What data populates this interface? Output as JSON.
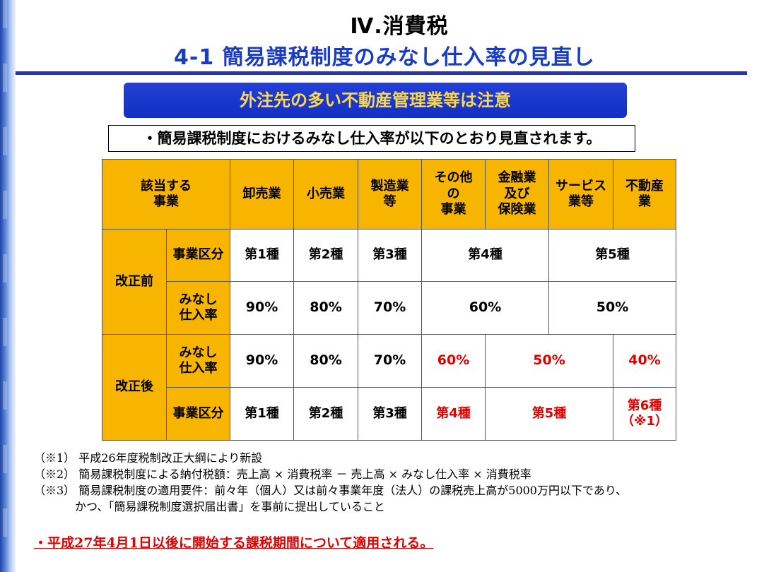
{
  "header": {
    "title": "Ⅳ.消費税",
    "subtitle": "4-1  簡易課税制度のみなし仕入率の見直し"
  },
  "banner": "外注先の多い不動産管理業等は注意",
  "intro": "・簡易課税制度におけるみなし仕入率が以下のとおり見直されます。",
  "table": {
    "corner_label": "該当する\n事業",
    "categories": [
      "卸売業",
      "小売業",
      "製造業\n等",
      "その他\nの\n事業",
      "金融業\n及び\n保険業",
      "サービス\n業等",
      "不動産\n業"
    ],
    "before": {
      "label": "改正前",
      "class_label": "事業区分",
      "rate_label": "みなし\n仕入率",
      "classes": [
        "第1種",
        "第2種",
        "第3種",
        "第4種",
        "第5種"
      ],
      "rates": [
        "90%",
        "80%",
        "70%",
        "60%",
        "50%"
      ]
    },
    "after": {
      "label": "改正後",
      "rate_label": "みなし\n仕入率",
      "class_label": "事業区分",
      "rates": [
        "90%",
        "80%",
        "70%",
        "60%",
        "50%",
        "40%"
      ],
      "classes": [
        "第1種",
        "第2種",
        "第3種",
        "第4種",
        "第5種",
        "第6種\n（※1）"
      ]
    }
  },
  "notes": [
    "（※1） 平成26年度税制改正大綱により新設",
    "（※2） 簡易課税制度による納付税額：売上高 × 消費税率 － 売上高 × みなし仕入率 × 消費税率",
    "（※3） 簡易課税制度の適用要件：前々年（個人）又は前々事業年度（法人）の課税売上高が5000万円以下であり、",
    "かつ、「簡易課税制度選択届出書」を事前に提出していること"
  ],
  "footer": "・平成27年4月1日以後に開始する課税期間について適用される。",
  "colors": {
    "title_blue": "#1a3cc2",
    "banner_bg": "#1230c2",
    "banner_text": "#ffd84a",
    "header_cell": "#f8b500",
    "highlight_red": "#e00000"
  }
}
